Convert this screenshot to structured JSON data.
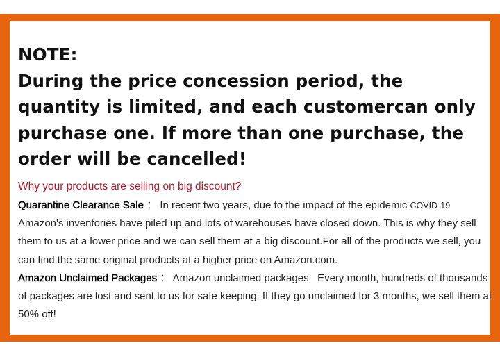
{
  "colors": {
    "frame": "#e8650f",
    "accent_red": "#b0192a"
  },
  "note": {
    "title": "NOTE:",
    "text": "During the price concession period, the quantity is limited, and each customercan only purchase one. If more than one purchase, the order will be cancelled!"
  },
  "why_heading": "Why your products are selling on big discount?",
  "sections": [
    {
      "label": "Quarantine Clearance Sale",
      "sep": "：",
      "text": "In recent two years, due to the impact of the epidemic ",
      "text_small": "COVID-19",
      "text2": " Amazon's inventories have piled up and lots of warehouses have closed down. This is why they sell them to us at a lower price and we can sell them at a big discount.For all of the products we sell, you can find the same original products at a higher price on Amazon.com."
    },
    {
      "label": "Amazon Unclaimed Packages",
      "sep": "：",
      "text": "Amazon unclaimed packages   Every month, hundreds of thousands of packages are lost and sent to us for safe keeping. If they go unclaimed for 3 months, we sell them at 50% off!"
    }
  ]
}
